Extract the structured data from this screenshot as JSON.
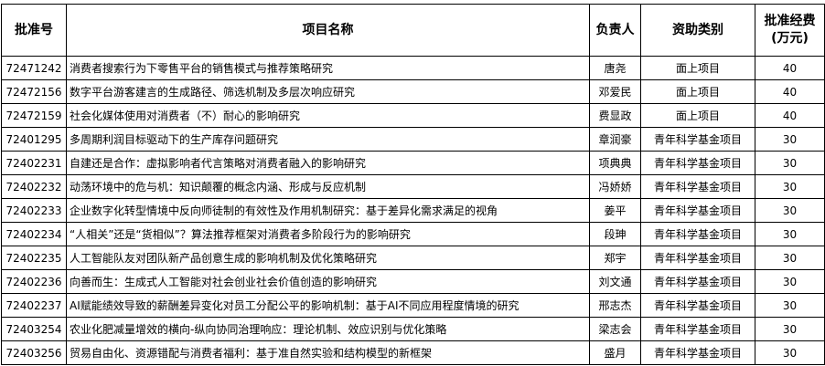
{
  "headers": {
    "id": "批准号",
    "name": "项目名称",
    "leader": "负责人",
    "category": "资助类别",
    "funding_line1": "批准经费",
    "funding_line2": "(万元)"
  },
  "rows": [
    {
      "id": "72471242",
      "name": "消费者搜索行为下零售平台的销售模式与推荐策略研究",
      "leader": "唐尧",
      "category": "面上项目",
      "funding": "40"
    },
    {
      "id": "72472156",
      "name": "数字平台游客建言的生成路径、筛选机制及多层次响应研究",
      "leader": "邓爱民",
      "category": "面上项目",
      "funding": "40"
    },
    {
      "id": "72472159",
      "name": "社会化媒体使用对消费者（不）耐心的影响研究",
      "leader": "费显政",
      "category": "面上项目",
      "funding": "40"
    },
    {
      "id": "72401295",
      "name": "多周期利润目标驱动下的生产库存问题研究",
      "leader": "章润豪",
      "category": "青年科学基金项目",
      "funding": "30"
    },
    {
      "id": "72402231",
      "name": "自建还是合作：虚拟影响者代言策略对消费者融入的影响研究",
      "leader": "项典典",
      "category": "青年科学基金项目",
      "funding": "30"
    },
    {
      "id": "72402232",
      "name": "动荡环境中的危与机：知识颠覆的概念内涵、形成与反应机制",
      "leader": "冯娇娇",
      "category": "青年科学基金项目",
      "funding": "30"
    },
    {
      "id": "72402233",
      "name": "企业数字化转型情境中反向师徒制的有效性及作用机制研究：基于差异化需求满足的视角",
      "leader": "姜平",
      "category": "青年科学基金项目",
      "funding": "30"
    },
    {
      "id": "72402234",
      "name": "“人相关”还是“货相似”？算法推荐框架对消费者多阶段行为的影响研究",
      "leader": "段珅",
      "category": "青年科学基金项目",
      "funding": "30"
    },
    {
      "id": "72402235",
      "name": "人工智能队友对团队新产品创意生成的影响机制及优化策略研究",
      "leader": "郑宇",
      "category": "青年科学基金项目",
      "funding": "30"
    },
    {
      "id": "72402236",
      "name": "向善而生：生成式人工智能对社会创业社会价值创造的影响研究",
      "leader": "刘文通",
      "category": "青年科学基金项目",
      "funding": "30"
    },
    {
      "id": "72402237",
      "name": "AI赋能绩效导致的薪酬差异变化对员工分配公平的影响机制：基于AI不同应用程度情境的研究",
      "leader": "邢志杰",
      "category": "青年科学基金项目",
      "funding": "30"
    },
    {
      "id": "72403254",
      "name": "农业化肥减量增效的横向-纵向协同治理响应：理论机制、效应识别与优化策略",
      "leader": "梁志会",
      "category": "青年科学基金项目",
      "funding": "30"
    },
    {
      "id": "72403256",
      "name": "贸易自由化、资源错配与消费者福利：基于准自然实验和结构模型的新框架",
      "leader": "盛月",
      "category": "青年科学基金项目",
      "funding": "30"
    }
  ]
}
